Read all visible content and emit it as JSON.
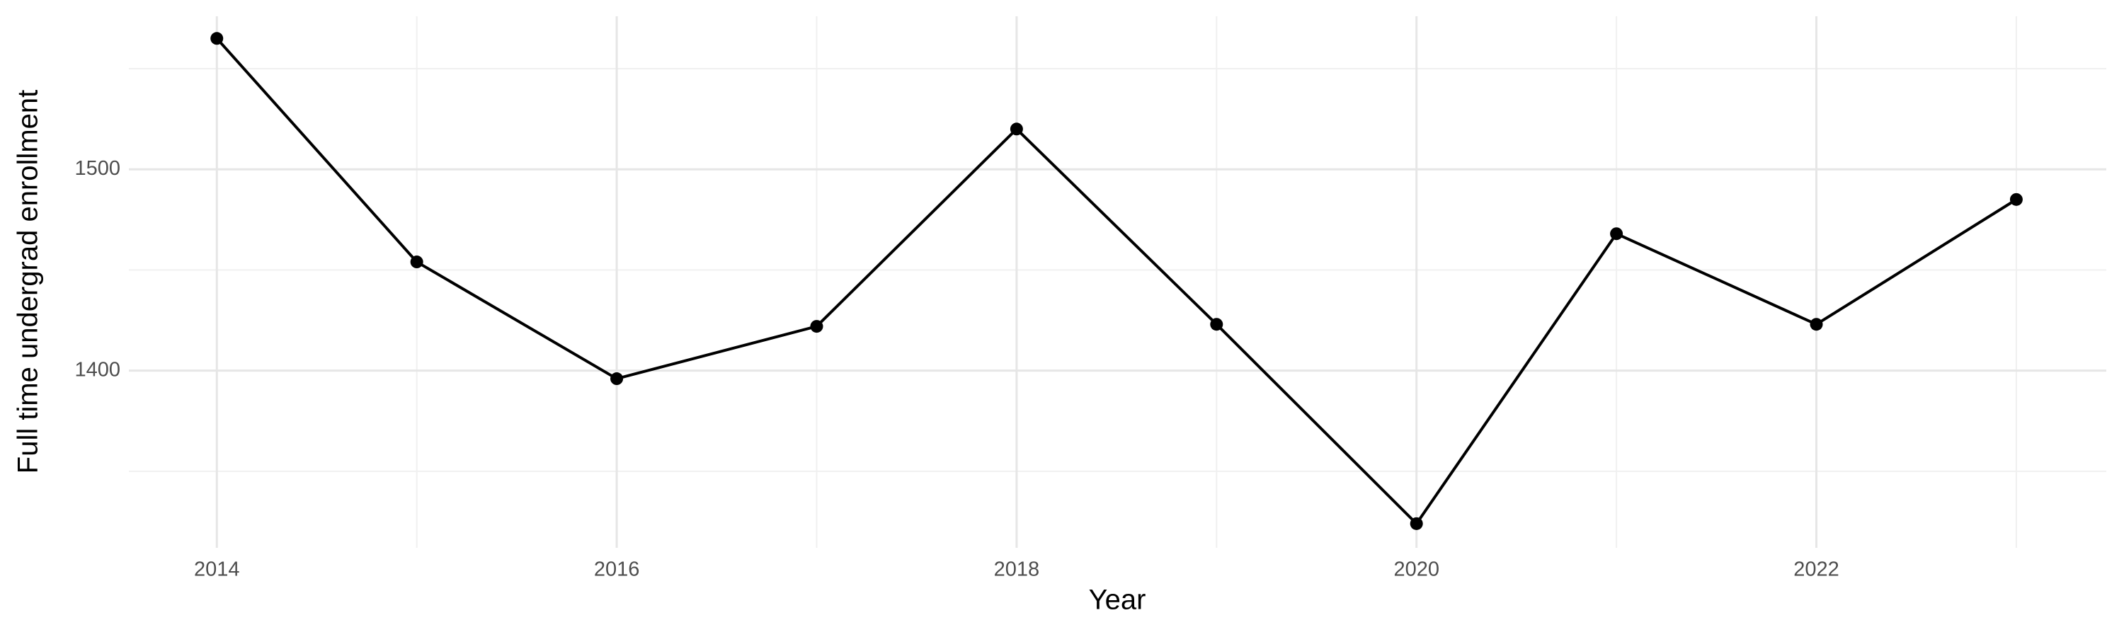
{
  "chart_data": {
    "type": "line",
    "x_label": "Year",
    "y_label": "Full time undergrad enrollment",
    "x": [
      2014,
      2015,
      2016,
      2017,
      2018,
      2019,
      2020,
      2021,
      2022,
      2023
    ],
    "series": [
      {
        "name": "Full time undergrad enrollment",
        "color": "#000000",
        "values": [
          1565,
          1454,
          1396,
          1422,
          1520,
          1423,
          1324,
          1468,
          1423,
          1485
        ]
      }
    ],
    "xlim": [
      2013.56,
      2023.45
    ],
    "ylim": [
      1312,
      1576
    ],
    "xticks": [
      2014,
      2016,
      2018,
      2020,
      2022
    ],
    "xminor": [
      2015,
      2017,
      2019,
      2021,
      2023
    ],
    "yticks": [
      1400,
      1500
    ],
    "yminor": [
      1350,
      1450,
      1550
    ],
    "grid": true
  }
}
